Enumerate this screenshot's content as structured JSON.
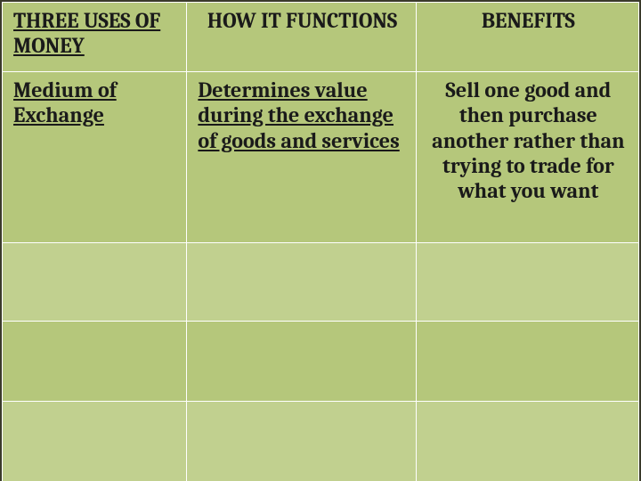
{
  "slide": {
    "background_color": "#b5c77b",
    "alt_row_color": "#c1d08f",
    "border_color": "#ffffff",
    "outer_border_color": "#3a3a2a",
    "font_family": "Cambria, Georgia, serif",
    "header_fontsize_pt": 18,
    "body_fontsize_pt": 18,
    "text_color": "#1a1a1a",
    "columns": [
      {
        "label": "THREE USES OF MONEY",
        "underline": true,
        "align": "left",
        "width_pct": 29
      },
      {
        "label": "HOW IT FUNCTIONS",
        "underline": false,
        "align": "center",
        "width_pct": 36
      },
      {
        "label": "BENEFITS",
        "underline": false,
        "align": "center",
        "width_pct": 35
      }
    ],
    "rows": [
      {
        "uses": {
          "text": "Medium of Exchange",
          "underline": true
        },
        "functions": {
          "text": "Determines value during the exchange of goods and services",
          "underline": true
        },
        "benefits": {
          "text": "Sell one good and then purchase another rather than trying to trade for what you want",
          "underline": false
        }
      },
      {
        "uses": {
          "text": ""
        },
        "functions": {
          "text": ""
        },
        "benefits": {
          "text": ""
        }
      },
      {
        "uses": {
          "text": ""
        },
        "functions": {
          "text": ""
        },
        "benefits": {
          "text": ""
        }
      },
      {
        "uses": {
          "text": ""
        },
        "functions": {
          "text": ""
        },
        "benefits": {
          "text": ""
        }
      }
    ]
  }
}
